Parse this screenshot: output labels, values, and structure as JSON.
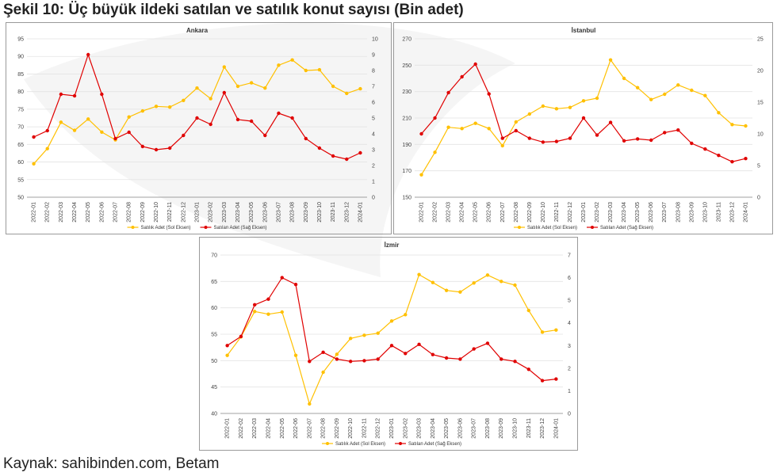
{
  "figure": {
    "title": "Şekil 10: Üç büyük ildeki satılan ve satılık konut sayısı (Bin adet)",
    "source": "Kaynak: sahibinden.com, Betam"
  },
  "colors": {
    "satilik": "#ffc000",
    "satilan": "#e00000",
    "grid": "#e3e3e3",
    "axis": "#888888"
  },
  "chart_data": [
    {
      "type": "line",
      "title": "Ankara",
      "categories": [
        "2022-01",
        "2022-02",
        "2022-03",
        "2022-04",
        "2022-05",
        "2022-06",
        "2022-07",
        "2022-08",
        "2022-09",
        "2022-10",
        "2022-11",
        "2022-12",
        "2023-01",
        "2023-02",
        "2023-03",
        "2023-04",
        "2023-05",
        "2023-06",
        "2023-07",
        "2023-08",
        "2023-09",
        "2023-10",
        "2023-11",
        "2023-12",
        "2024-01"
      ],
      "y_left": {
        "min": 50,
        "max": 95,
        "step": 5
      },
      "y_right": {
        "min": 0,
        "max": 10,
        "step": 1
      },
      "series": [
        {
          "name": "Satılık Adet (Sol Eksen)",
          "axis": "left",
          "values": [
            59.5,
            63.8,
            71.3,
            69.0,
            72.2,
            68.5,
            66.3,
            72.8,
            74.5,
            75.8,
            75.6,
            77.5,
            81.0,
            78.0,
            87.0,
            81.5,
            82.5,
            81.0,
            87.5,
            89.0,
            86.0,
            86.2,
            81.5,
            79.5,
            80.8
          ]
        },
        {
          "name": "Satılan Adet (Sağ Eksen)",
          "axis": "right",
          "values": [
            3.8,
            4.2,
            6.5,
            6.4,
            9.0,
            6.5,
            3.7,
            4.1,
            3.2,
            3.0,
            3.1,
            3.9,
            5.0,
            4.6,
            6.6,
            4.9,
            4.8,
            3.9,
            5.3,
            5.0,
            3.7,
            3.1,
            2.6,
            2.4,
            2.8
          ]
        }
      ]
    },
    {
      "type": "line",
      "title": "İstanbul",
      "categories": [
        "2022-01",
        "2022-02",
        "2022-03",
        "2022-04",
        "2022-05",
        "2022-06",
        "2022-07",
        "2022-08",
        "2022-09",
        "2022-10",
        "2022-11",
        "2022-12",
        "2023-01",
        "2023-02",
        "2023-03",
        "2023-04",
        "2023-05",
        "2023-06",
        "2023-07",
        "2023-08",
        "2023-09",
        "2023-10",
        "2023-11",
        "2023-12",
        "2024-01"
      ],
      "y_left": {
        "min": 150,
        "max": 270,
        "step": 20
      },
      "y_right": {
        "min": 0,
        "max": 25,
        "step": 5
      },
      "series": [
        {
          "name": "Satılık Adet (Sol Eksen)",
          "axis": "left",
          "values": [
            167,
            184,
            203,
            202,
            206,
            202,
            189,
            207,
            213,
            219,
            217,
            218,
            223,
            225,
            254,
            240,
            233,
            224,
            228,
            235,
            231,
            227,
            214,
            205,
            204
          ]
        },
        {
          "name": "Satılan Adet (Sağ Eksen)",
          "axis": "right",
          "values": [
            10.0,
            12.5,
            16.5,
            19.0,
            21.0,
            16.3,
            9.3,
            10.5,
            9.3,
            8.7,
            8.8,
            9.3,
            12.5,
            9.8,
            11.8,
            8.9,
            9.2,
            9.0,
            10.2,
            10.6,
            8.5,
            7.6,
            6.6,
            5.6,
            6.1
          ]
        }
      ]
    },
    {
      "type": "line",
      "title": "İzmir",
      "categories": [
        "2022-01",
        "2022-02",
        "2022-03",
        "2022-04",
        "2022-05",
        "2022-06",
        "2022-07",
        "2022-08",
        "2022-09",
        "2022-10",
        "2022-11",
        "2022-12",
        "2023-01",
        "2023-02",
        "2023-03",
        "2023-04",
        "2023-05",
        "2023-06",
        "2023-07",
        "2023-08",
        "2023-09",
        "2023-10",
        "2023-11",
        "2023-12",
        "2024-01"
      ],
      "y_left": {
        "min": 40,
        "max": 70,
        "step": 5
      },
      "y_right": {
        "min": 0,
        "max": 7,
        "step": 1
      },
      "series": [
        {
          "name": "Satılık Adet (Sol Eksen)",
          "axis": "left",
          "values": [
            51.0,
            54.5,
            59.3,
            58.8,
            59.2,
            51.0,
            41.8,
            47.8,
            51.2,
            54.2,
            54.8,
            55.2,
            57.5,
            58.7,
            66.3,
            64.8,
            63.3,
            63.0,
            64.7,
            66.2,
            65.0,
            64.3,
            59.5,
            55.4,
            55.8
          ]
        },
        {
          "name": "Satılan Adet (Sağ Eksen)",
          "axis": "right",
          "values": [
            3.0,
            3.4,
            4.8,
            5.05,
            6.0,
            5.7,
            2.3,
            2.7,
            2.4,
            2.3,
            2.33,
            2.4,
            3.0,
            2.65,
            3.05,
            2.6,
            2.45,
            2.4,
            2.85,
            3.1,
            2.4,
            2.3,
            1.95,
            1.45,
            1.52
          ]
        }
      ]
    }
  ]
}
